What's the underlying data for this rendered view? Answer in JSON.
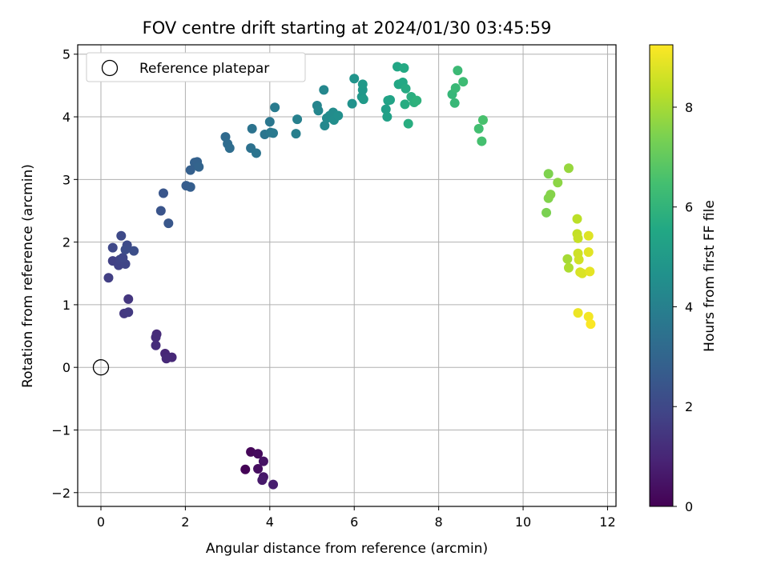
{
  "chart_data": {
    "type": "scatter",
    "title": "FOV centre drift starting at 2024/01/30 03:45:59",
    "xlabel": "Angular distance from reference (arcmin)",
    "ylabel": "Rotation from reference (arcmin)",
    "xlim": [
      -0.55,
      12.2
    ],
    "ylim": [
      -2.22,
      5.15
    ],
    "xticks": [
      0,
      2,
      4,
      6,
      8,
      10,
      12
    ],
    "yticks": [
      -2,
      -1,
      0,
      1,
      2,
      3,
      4,
      5
    ],
    "grid": true,
    "legend": {
      "position": "top-left",
      "entries": [
        "Reference platepar"
      ]
    },
    "reference_point": {
      "x": 0,
      "y": 0,
      "label": "Reference platepar"
    },
    "colorbar": {
      "label": "Hours from first FF file",
      "colormap": "viridis",
      "range": [
        0,
        9.25
      ],
      "ticks": [
        0,
        2,
        4,
        6,
        8
      ]
    },
    "points": [
      {
        "x": 3.42,
        "y": -1.63,
        "t": 0.05
      },
      {
        "x": 3.55,
        "y": -1.35,
        "t": 0.15
      },
      {
        "x": 3.72,
        "y": -1.38,
        "t": 0.25
      },
      {
        "x": 3.72,
        "y": -1.62,
        "t": 0.35
      },
      {
        "x": 3.85,
        "y": -1.5,
        "t": 0.45
      },
      {
        "x": 3.85,
        "y": -1.75,
        "t": 0.55
      },
      {
        "x": 3.82,
        "y": -1.8,
        "t": 0.65
      },
      {
        "x": 4.08,
        "y": -1.87,
        "t": 0.75
      },
      {
        "x": 1.52,
        "y": 0.22,
        "t": 1.0
      },
      {
        "x": 1.68,
        "y": 0.16,
        "t": 1.05
      },
      {
        "x": 1.55,
        "y": 0.14,
        "t": 1.1
      },
      {
        "x": 1.32,
        "y": 0.53,
        "t": 1.12
      },
      {
        "x": 1.3,
        "y": 0.48,
        "t": 1.15
      },
      {
        "x": 1.3,
        "y": 0.35,
        "t": 1.18
      },
      {
        "x": 0.65,
        "y": 1.09,
        "t": 1.45
      },
      {
        "x": 0.55,
        "y": 0.86,
        "t": 1.5
      },
      {
        "x": 0.65,
        "y": 0.88,
        "t": 1.55
      },
      {
        "x": 0.18,
        "y": 1.43,
        "t": 1.7
      },
      {
        "x": 0.28,
        "y": 1.7,
        "t": 1.75
      },
      {
        "x": 0.42,
        "y": 1.63,
        "t": 1.8
      },
      {
        "x": 0.45,
        "y": 1.72,
        "t": 1.85
      },
      {
        "x": 0.58,
        "y": 1.65,
        "t": 1.9
      },
      {
        "x": 0.52,
        "y": 1.75,
        "t": 1.95
      },
      {
        "x": 0.28,
        "y": 1.91,
        "t": 2.0
      },
      {
        "x": 0.48,
        "y": 2.1,
        "t": 2.05
      },
      {
        "x": 0.62,
        "y": 1.95,
        "t": 2.1
      },
      {
        "x": 0.58,
        "y": 1.88,
        "t": 2.15
      },
      {
        "x": 0.78,
        "y": 1.86,
        "t": 2.2
      },
      {
        "x": 1.42,
        "y": 2.5,
        "t": 2.4
      },
      {
        "x": 1.48,
        "y": 2.78,
        "t": 2.45
      },
      {
        "x": 1.6,
        "y": 2.3,
        "t": 2.5
      },
      {
        "x": 2.02,
        "y": 2.9,
        "t": 2.7
      },
      {
        "x": 2.12,
        "y": 2.88,
        "t": 2.75
      },
      {
        "x": 2.12,
        "y": 3.15,
        "t": 2.8
      },
      {
        "x": 2.22,
        "y": 3.27,
        "t": 2.85
      },
      {
        "x": 2.28,
        "y": 3.28,
        "t": 2.9
      },
      {
        "x": 2.32,
        "y": 3.2,
        "t": 2.95
      },
      {
        "x": 2.95,
        "y": 3.68,
        "t": 3.2
      },
      {
        "x": 3.0,
        "y": 3.57,
        "t": 3.25
      },
      {
        "x": 3.05,
        "y": 3.5,
        "t": 3.3
      },
      {
        "x": 3.55,
        "y": 3.5,
        "t": 3.45
      },
      {
        "x": 3.58,
        "y": 3.81,
        "t": 3.5
      },
      {
        "x": 3.68,
        "y": 3.42,
        "t": 3.55
      },
      {
        "x": 3.88,
        "y": 3.72,
        "t": 3.6
      },
      {
        "x": 4.0,
        "y": 3.92,
        "t": 3.65
      },
      {
        "x": 4.02,
        "y": 3.75,
        "t": 3.7
      },
      {
        "x": 4.08,
        "y": 3.74,
        "t": 3.75
      },
      {
        "x": 4.12,
        "y": 4.15,
        "t": 3.8
      },
      {
        "x": 4.62,
        "y": 3.73,
        "t": 3.95
      },
      {
        "x": 4.65,
        "y": 3.96,
        "t": 4.0
      },
      {
        "x": 5.12,
        "y": 4.18,
        "t": 4.15
      },
      {
        "x": 5.15,
        "y": 4.1,
        "t": 4.2
      },
      {
        "x": 5.28,
        "y": 4.43,
        "t": 4.25
      },
      {
        "x": 5.3,
        "y": 3.86,
        "t": 4.3
      },
      {
        "x": 5.35,
        "y": 3.98,
        "t": 4.35
      },
      {
        "x": 5.42,
        "y": 4.02,
        "t": 4.4
      },
      {
        "x": 5.5,
        "y": 4.07,
        "t": 4.45
      },
      {
        "x": 5.52,
        "y": 3.95,
        "t": 4.5
      },
      {
        "x": 5.62,
        "y": 4.02,
        "t": 4.55
      },
      {
        "x": 5.95,
        "y": 4.21,
        "t": 4.65
      },
      {
        "x": 6.0,
        "y": 4.61,
        "t": 4.75
      },
      {
        "x": 6.18,
        "y": 4.32,
        "t": 4.85
      },
      {
        "x": 6.2,
        "y": 4.43,
        "t": 4.9
      },
      {
        "x": 6.2,
        "y": 4.52,
        "t": 4.95
      },
      {
        "x": 6.22,
        "y": 4.28,
        "t": 5.0
      },
      {
        "x": 6.75,
        "y": 4.12,
        "t": 5.2
      },
      {
        "x": 6.78,
        "y": 4.0,
        "t": 5.25
      },
      {
        "x": 6.8,
        "y": 4.26,
        "t": 5.3
      },
      {
        "x": 6.85,
        "y": 4.27,
        "t": 5.35
      },
      {
        "x": 7.02,
        "y": 4.8,
        "t": 5.45
      },
      {
        "x": 7.05,
        "y": 4.52,
        "t": 5.5
      },
      {
        "x": 7.15,
        "y": 4.55,
        "t": 5.55
      },
      {
        "x": 7.18,
        "y": 4.78,
        "t": 5.6
      },
      {
        "x": 7.22,
        "y": 4.45,
        "t": 5.65
      },
      {
        "x": 7.2,
        "y": 4.2,
        "t": 5.7
      },
      {
        "x": 7.28,
        "y": 3.89,
        "t": 5.75
      },
      {
        "x": 7.35,
        "y": 4.32,
        "t": 5.8
      },
      {
        "x": 7.42,
        "y": 4.23,
        "t": 5.85
      },
      {
        "x": 7.48,
        "y": 4.26,
        "t": 5.9
      },
      {
        "x": 8.32,
        "y": 4.36,
        "t": 6.1
      },
      {
        "x": 8.38,
        "y": 4.22,
        "t": 6.15
      },
      {
        "x": 8.4,
        "y": 4.46,
        "t": 6.2
      },
      {
        "x": 8.45,
        "y": 4.74,
        "t": 6.25
      },
      {
        "x": 8.58,
        "y": 4.56,
        "t": 6.3
      },
      {
        "x": 8.95,
        "y": 3.81,
        "t": 6.45
      },
      {
        "x": 9.02,
        "y": 3.61,
        "t": 6.5
      },
      {
        "x": 9.05,
        "y": 3.95,
        "t": 6.55
      },
      {
        "x": 10.55,
        "y": 2.47,
        "t": 7.4
      },
      {
        "x": 10.6,
        "y": 3.09,
        "t": 7.45
      },
      {
        "x": 10.6,
        "y": 2.7,
        "t": 7.5
      },
      {
        "x": 10.65,
        "y": 2.76,
        "t": 7.55
      },
      {
        "x": 10.82,
        "y": 2.95,
        "t": 7.65
      },
      {
        "x": 11.08,
        "y": 3.18,
        "t": 7.8
      },
      {
        "x": 11.05,
        "y": 1.73,
        "t": 8.0
      },
      {
        "x": 11.08,
        "y": 1.59,
        "t": 8.1
      },
      {
        "x": 11.28,
        "y": 2.37,
        "t": 8.3
      },
      {
        "x": 11.28,
        "y": 2.13,
        "t": 8.4
      },
      {
        "x": 11.3,
        "y": 2.06,
        "t": 8.45
      },
      {
        "x": 11.3,
        "y": 1.82,
        "t": 8.55
      },
      {
        "x": 11.32,
        "y": 1.72,
        "t": 8.6
      },
      {
        "x": 11.35,
        "y": 1.52,
        "t": 8.7
      },
      {
        "x": 11.4,
        "y": 1.5,
        "t": 8.75
      },
      {
        "x": 11.55,
        "y": 2.1,
        "t": 8.8
      },
      {
        "x": 11.55,
        "y": 1.84,
        "t": 8.85
      },
      {
        "x": 11.58,
        "y": 1.53,
        "t": 8.9
      },
      {
        "x": 11.3,
        "y": 0.87,
        "t": 9.0
      },
      {
        "x": 11.55,
        "y": 0.81,
        "t": 9.1
      },
      {
        "x": 11.6,
        "y": 0.69,
        "t": 9.2
      }
    ]
  }
}
